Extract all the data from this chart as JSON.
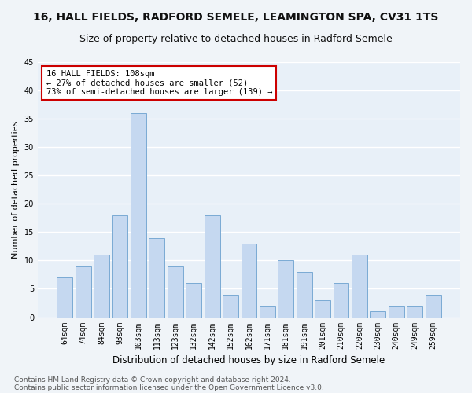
{
  "title1": "16, HALL FIELDS, RADFORD SEMELE, LEAMINGTON SPA, CV31 1TS",
  "title2": "Size of property relative to detached houses in Radford Semele",
  "xlabel": "Distribution of detached houses by size in Radford Semele",
  "ylabel": "Number of detached properties",
  "footer1": "Contains HM Land Registry data © Crown copyright and database right 2024.",
  "footer2": "Contains public sector information licensed under the Open Government Licence v3.0.",
  "categories": [
    "64sqm",
    "74sqm",
    "84sqm",
    "93sqm",
    "103sqm",
    "113sqm",
    "123sqm",
    "132sqm",
    "142sqm",
    "152sqm",
    "162sqm",
    "171sqm",
    "181sqm",
    "191sqm",
    "201sqm",
    "210sqm",
    "220sqm",
    "230sqm",
    "240sqm",
    "249sqm",
    "259sqm"
  ],
  "values": [
    7,
    9,
    11,
    18,
    36,
    14,
    9,
    6,
    18,
    4,
    13,
    2,
    10,
    8,
    3,
    6,
    11,
    1,
    2,
    2,
    4
  ],
  "bar_color": "#c5d8f0",
  "bar_edge_color": "#7aaad4",
  "annotation_text": "16 HALL FIELDS: 108sqm\n← 27% of detached houses are smaller (52)\n73% of semi-detached houses are larger (139) →",
  "annotation_box_color": "#ffffff",
  "annotation_box_edge": "#cc0000",
  "ylim": [
    0,
    45
  ],
  "yticks": [
    0,
    5,
    10,
    15,
    20,
    25,
    30,
    35,
    40,
    45
  ],
  "fig_bg_color": "#f0f4f8",
  "plot_bg_color": "#e8f0f8",
  "grid_color": "#ffffff",
  "title1_fontsize": 10,
  "title2_fontsize": 9,
  "xlabel_fontsize": 8.5,
  "ylabel_fontsize": 8,
  "tick_fontsize": 7,
  "annot_fontsize": 7.5,
  "footer_fontsize": 6.5
}
